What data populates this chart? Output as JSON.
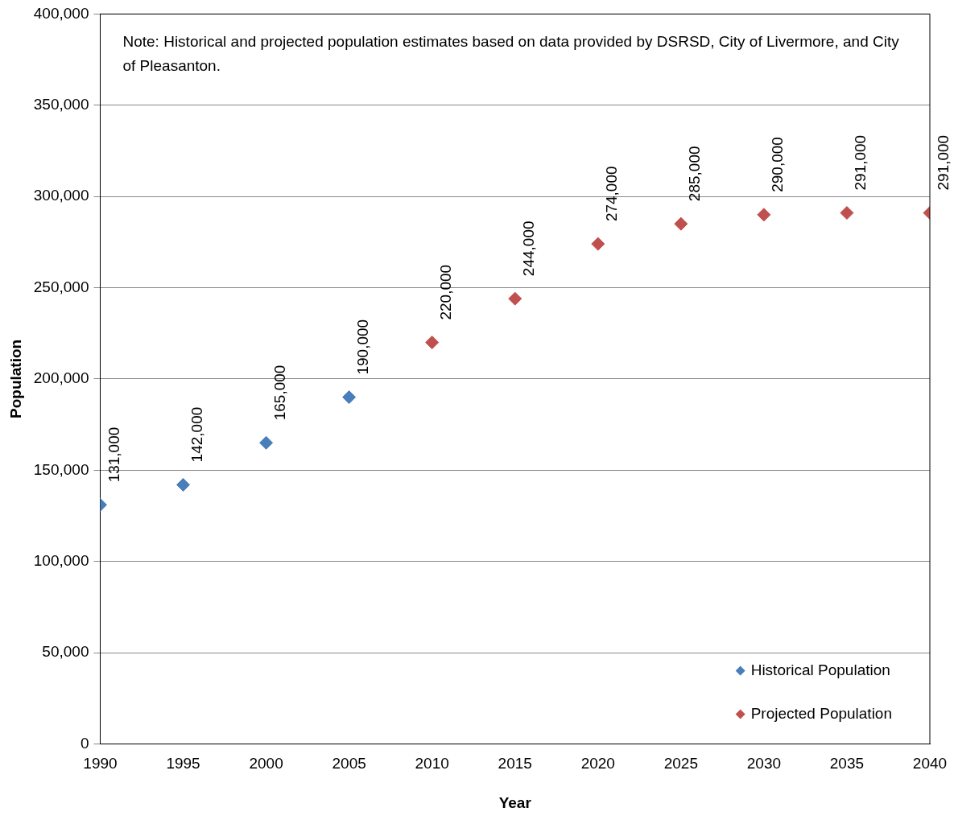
{
  "chart_data": {
    "type": "scatter",
    "xlabel": "Year",
    "ylabel": "Population",
    "annotations": [
      "Note: Historical and projected population estimates based on data provided by DSRSD, City of Livermore, and City of Pleasanton."
    ],
    "series": [
      {
        "name": "Historical Population",
        "color": "#4a7ebb",
        "x": [
          1990,
          1995,
          2000,
          2005
        ],
        "values": [
          131000,
          142000,
          165000,
          190000
        ],
        "value_labels": [
          "131,000",
          "142,000",
          "165,000",
          "190,000"
        ]
      },
      {
        "name": "Projected Population",
        "color": "#c0504d",
        "x": [
          2010,
          2015,
          2020,
          2025,
          2030,
          2035,
          2040
        ],
        "values": [
          220000,
          244000,
          274000,
          285000,
          290000,
          291000,
          291000
        ],
        "value_labels": [
          "220,000",
          "244,000",
          "274,000",
          "285,000",
          "290,000",
          "291,000",
          "291,000"
        ]
      }
    ],
    "xlim": [
      1990,
      2040
    ],
    "xticks": [
      1990,
      1995,
      2000,
      2005,
      2010,
      2015,
      2020,
      2025,
      2030,
      2035,
      2040
    ],
    "ylim": [
      0,
      400000
    ],
    "yticks": [
      0,
      {
        "value": 50000,
        "label": "50,000"
      },
      {
        "value": 100000,
        "label": "100,000"
      },
      {
        "value": 150000,
        "label": "150,000"
      },
      {
        "value": 200000,
        "label": "200,000"
      },
      {
        "value": 250000,
        "label": "250,000"
      },
      {
        "value": 300000,
        "label": "300,000"
      },
      {
        "value": 350000,
        "label": "350,000"
      },
      {
        "value": 400000,
        "label": "400,000"
      }
    ],
    "grid": "y",
    "legend": "bottom right",
    "marker": "diamond"
  }
}
